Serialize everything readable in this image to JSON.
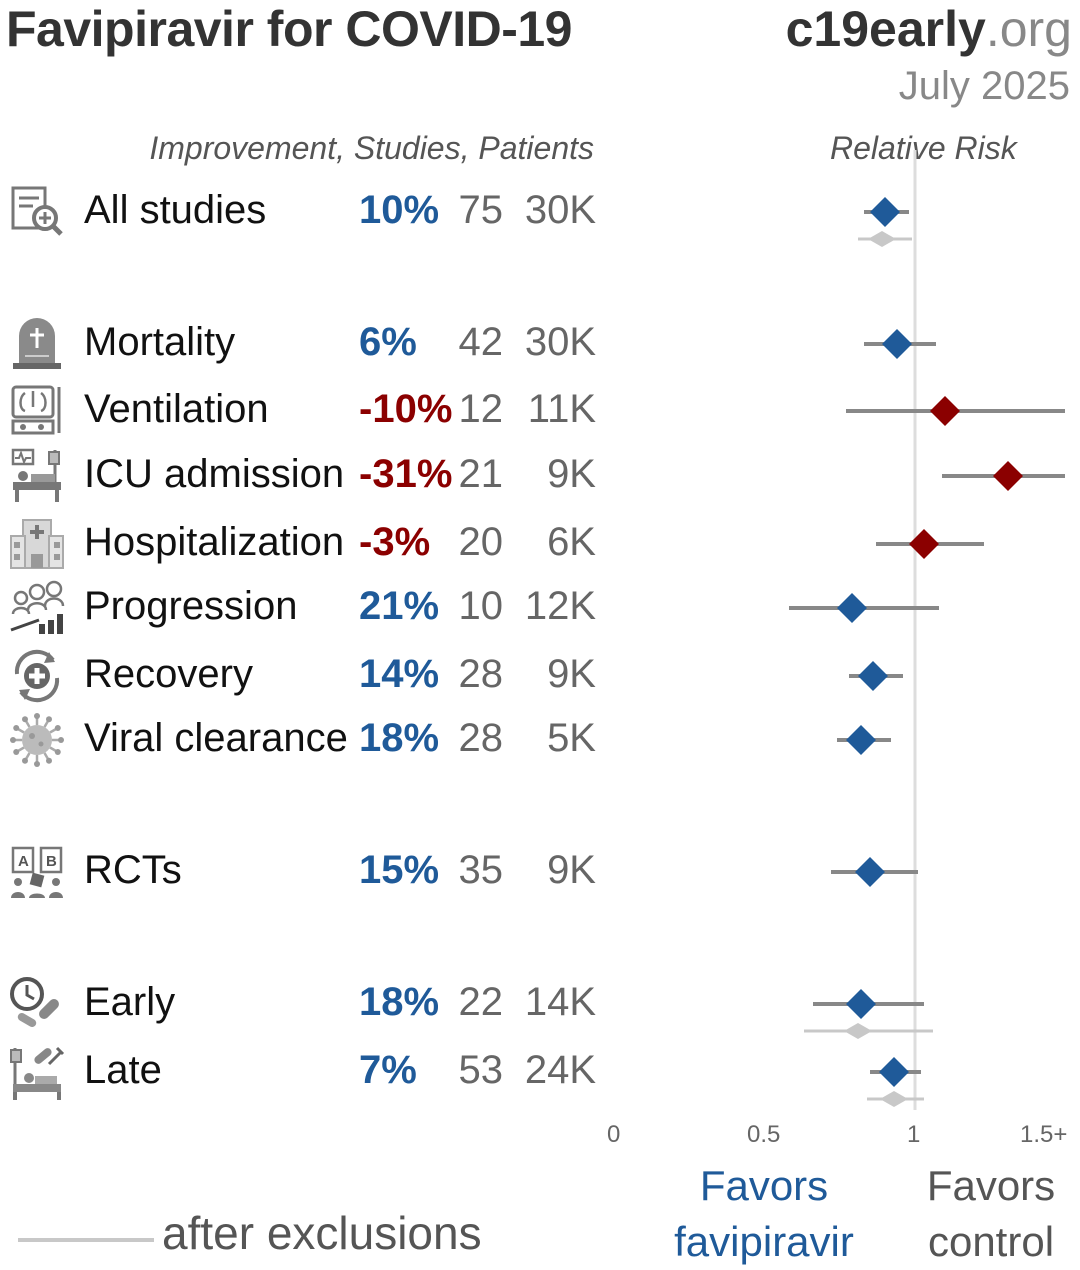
{
  "header": {
    "title": "Favipiravir for COVID-19",
    "brand_main": "c19early",
    "brand_tld": ".org",
    "date": "July 2025"
  },
  "columns": {
    "left_header": "Improvement, Studies, Patients",
    "right_header": "Relative Risk"
  },
  "colors": {
    "favorable": "#1f5a99",
    "unfavorable": "#8b0000",
    "ci_line": "#888888",
    "exclusions": "#c8c8c8",
    "reference_line": "#dddddd"
  },
  "chart_data": {
    "type": "forest",
    "title": "Favipiravir for COVID-19",
    "xlabel": "Relative Risk",
    "xlim": [
      0,
      1.5
    ],
    "x_ticks": [
      "0",
      "0.5",
      "1",
      "1.5+"
    ],
    "reference_value": 1,
    "rows": [
      {
        "id": "all",
        "icon": "document-search-icon",
        "label": "All studies",
        "improvement": "10%",
        "studies": "75",
        "patients": "30K",
        "rr": 0.9,
        "ci": [
          0.83,
          0.98
        ],
        "favorable": true,
        "excl": {
          "rr": 0.89,
          "ci": [
            0.81,
            0.99
          ]
        }
      },
      {
        "id": "mortality",
        "icon": "tombstone-icon",
        "label": "Mortality",
        "improvement": "6%",
        "studies": "42",
        "patients": "30K",
        "rr": 0.94,
        "ci": [
          0.83,
          1.07
        ],
        "favorable": true
      },
      {
        "id": "ventilation",
        "icon": "ventilator-icon",
        "label": "Ventilation",
        "improvement": "-10%",
        "studies": "12",
        "patients": "11K",
        "rr": 1.1,
        "ci": [
          0.77,
          1.5
        ],
        "favorable": false
      },
      {
        "id": "icu",
        "icon": "icu-bed-icon",
        "label": "ICU admission",
        "improvement": "-31%",
        "studies": "21",
        "patients": "9K",
        "rr": 1.31,
        "ci": [
          1.09,
          1.5
        ],
        "favorable": false
      },
      {
        "id": "hosp",
        "icon": "hospital-icon",
        "label": "Hospitalization",
        "improvement": "-3%",
        "studies": "20",
        "patients": "6K",
        "rr": 1.03,
        "ci": [
          0.87,
          1.23
        ],
        "favorable": false
      },
      {
        "id": "progression",
        "icon": "progression-icon",
        "label": "Progression",
        "improvement": "21%",
        "studies": "10",
        "patients": "12K",
        "rr": 0.79,
        "ci": [
          0.58,
          1.08
        ],
        "favorable": true
      },
      {
        "id": "recovery",
        "icon": "recovery-icon",
        "label": "Recovery",
        "improvement": "14%",
        "studies": "28",
        "patients": "9K",
        "rr": 0.86,
        "ci": [
          0.78,
          0.96
        ],
        "favorable": true
      },
      {
        "id": "viral",
        "icon": "virus-icon",
        "label": "Viral clearance",
        "improvement": "18%",
        "studies": "28",
        "patients": "5K",
        "rr": 0.82,
        "ci": [
          0.74,
          0.92
        ],
        "favorable": true
      },
      {
        "id": "rcts",
        "icon": "rct-icon",
        "label": "RCTs",
        "improvement": "15%",
        "studies": "35",
        "patients": "9K",
        "rr": 0.85,
        "ci": [
          0.72,
          1.01
        ],
        "favorable": true
      },
      {
        "id": "early",
        "icon": "early-treatment-icon",
        "label": "Early",
        "improvement": "18%",
        "studies": "22",
        "patients": "14K",
        "rr": 0.82,
        "ci": [
          0.66,
          1.03
        ],
        "favorable": true,
        "excl": {
          "rr": 0.81,
          "ci": [
            0.63,
            1.06
          ]
        }
      },
      {
        "id": "late",
        "icon": "late-treatment-icon",
        "label": "Late",
        "improvement": "7%",
        "studies": "53",
        "patients": "24K",
        "rr": 0.93,
        "ci": [
          0.85,
          1.02
        ],
        "favorable": true,
        "excl": {
          "rr": 0.93,
          "ci": [
            0.84,
            1.03
          ]
        }
      }
    ]
  },
  "footer": {
    "favors_left_1": "Favors",
    "favors_left_2": "favipiravir",
    "favors_right_1": "Favors",
    "favors_right_2": "control",
    "legend": "after exclusions"
  }
}
